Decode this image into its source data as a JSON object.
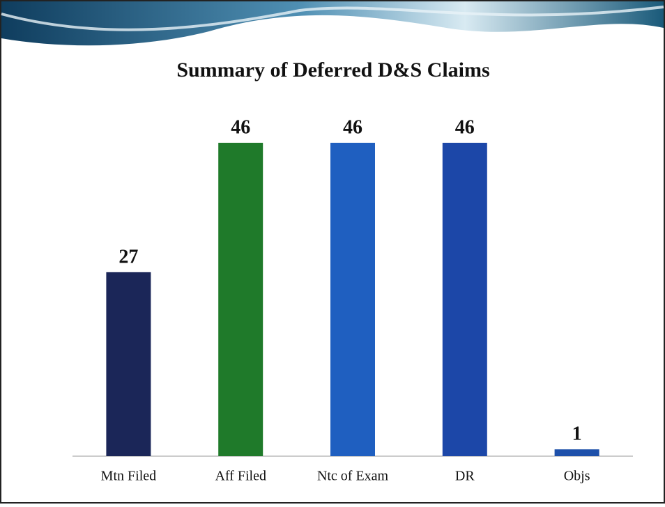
{
  "chart_data": {
    "type": "bar",
    "title": "Summary of  Deferred  D&S Claims",
    "categories": [
      "Mtn Filed",
      "Aff Filed",
      "Ntc of Exam",
      "DR",
      "Objs"
    ],
    "values": [
      27,
      46,
      46,
      46,
      1
    ],
    "colors": [
      "#1b2658",
      "#1f7a2a",
      "#1f5fc0",
      "#1c47a8",
      "#1e50aa"
    ]
  }
}
